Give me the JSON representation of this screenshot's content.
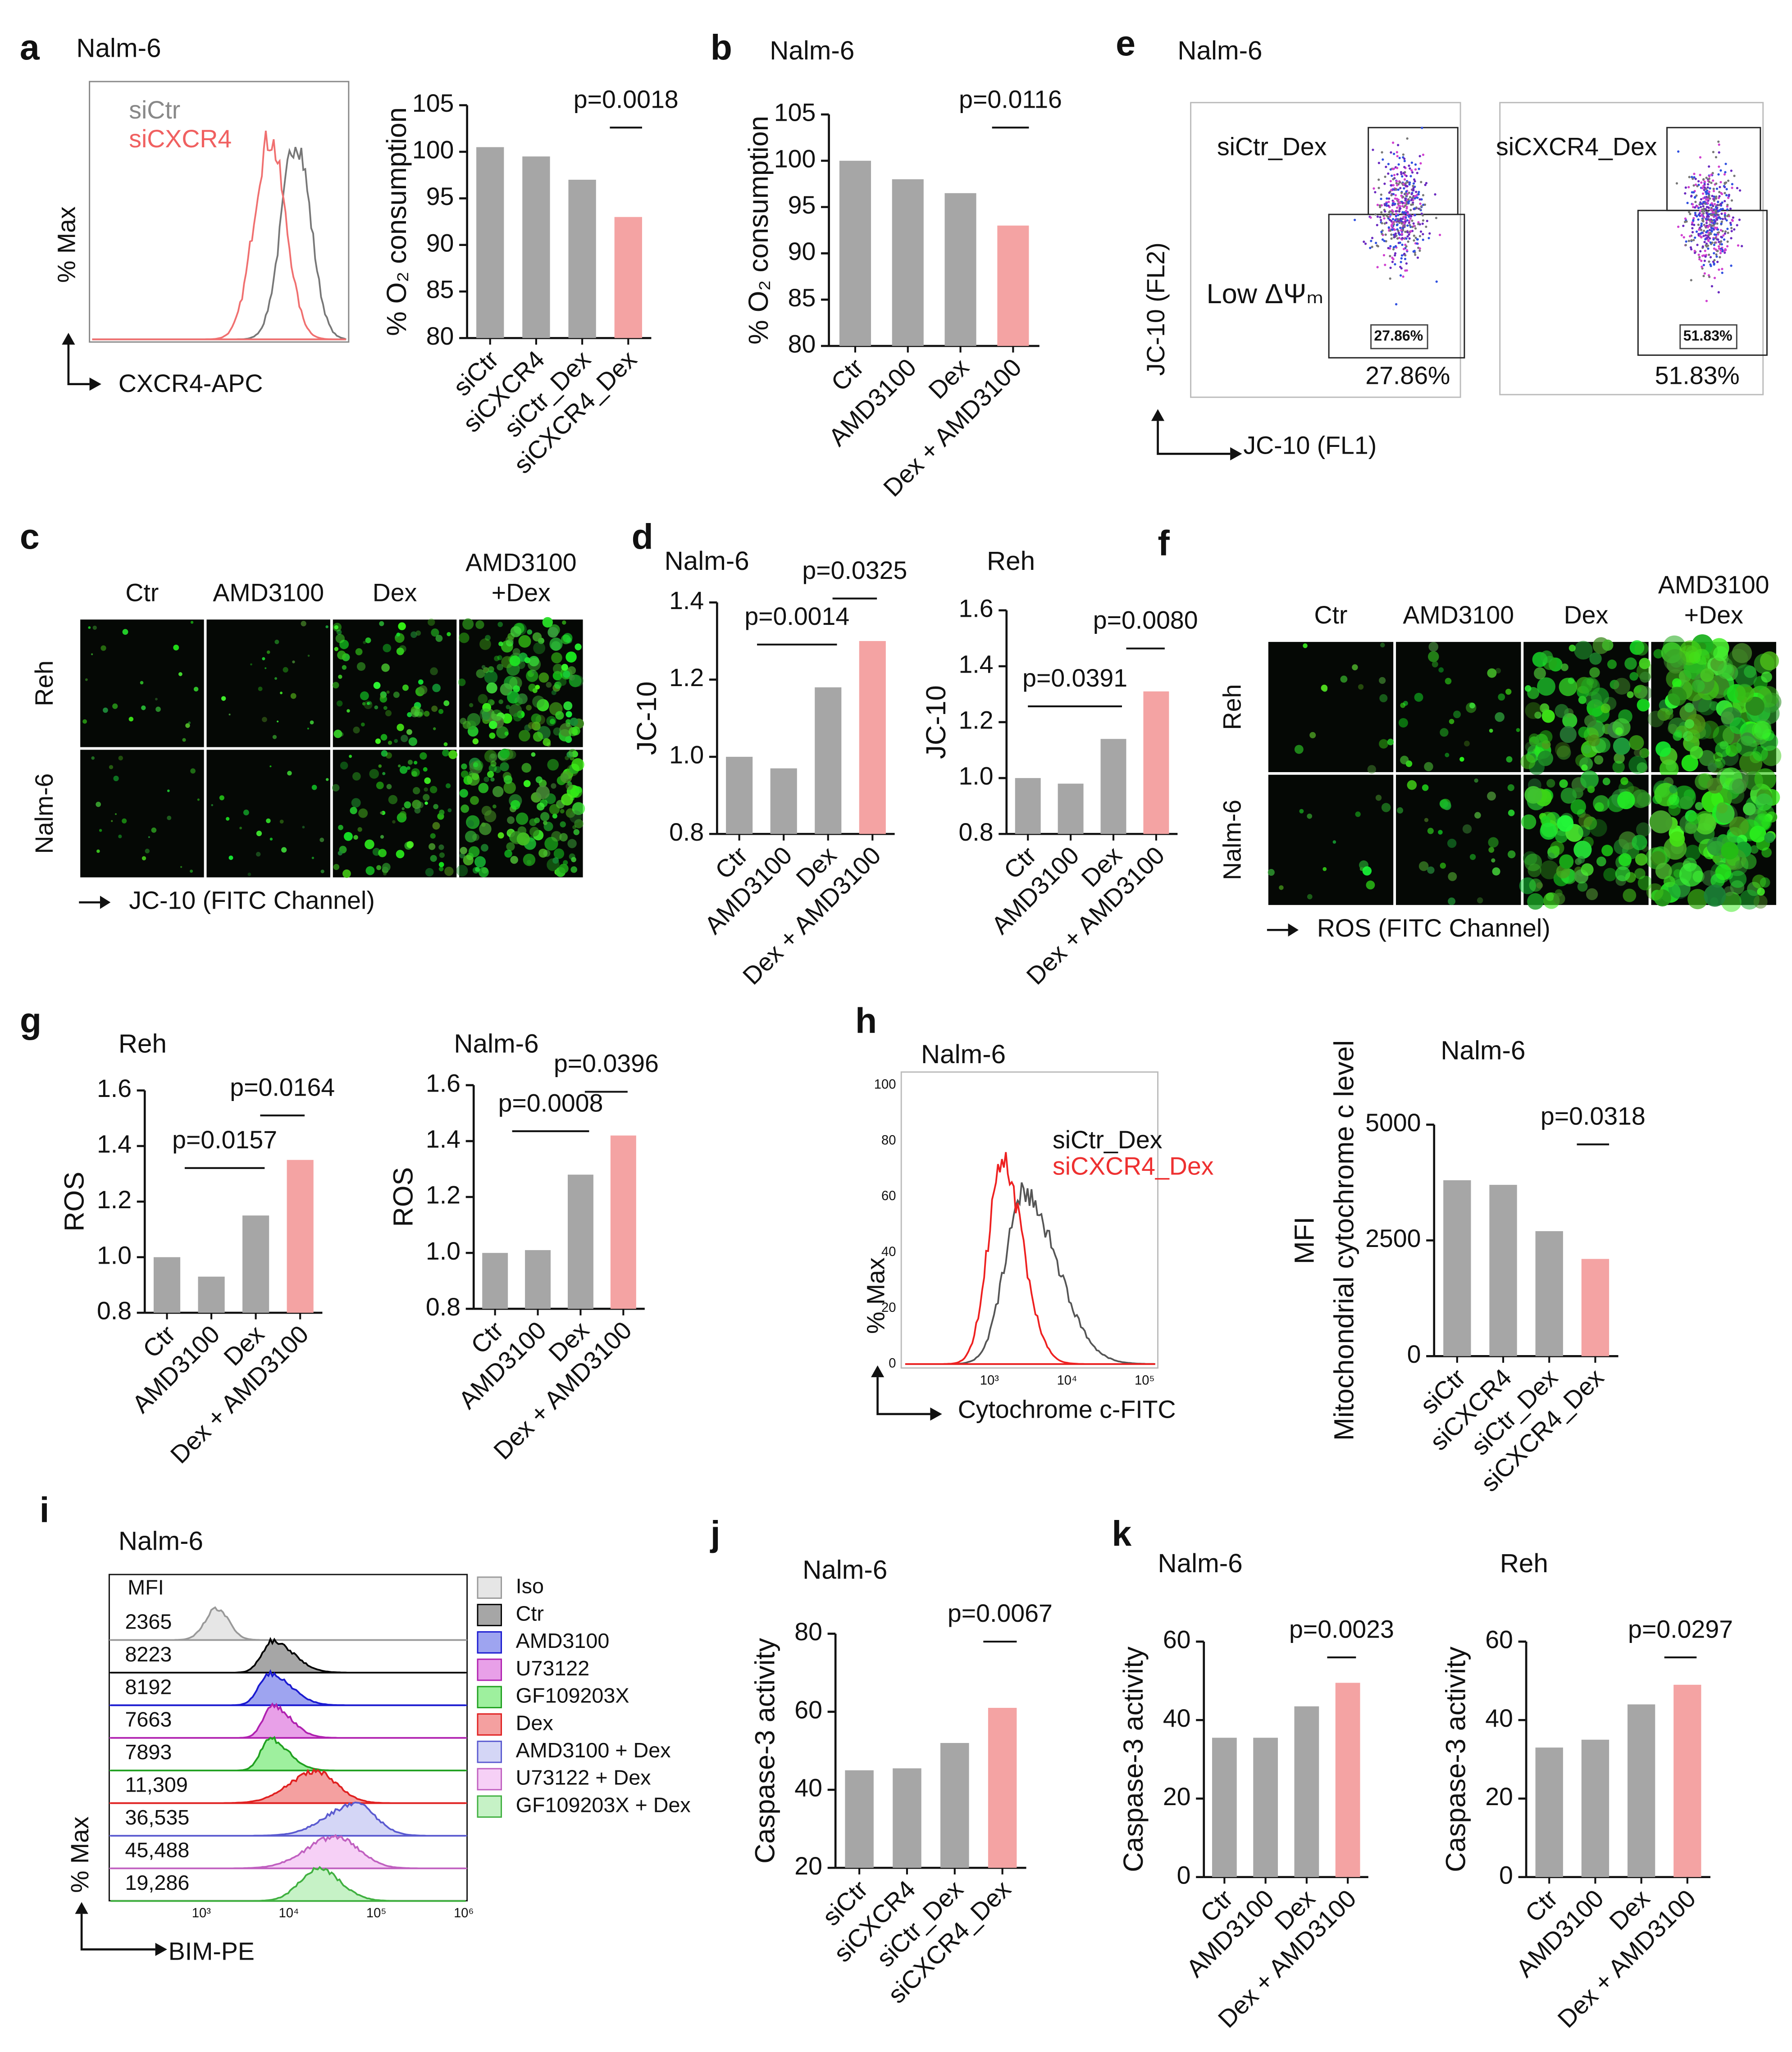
{
  "panel_labels": [
    "a",
    "b",
    "e",
    "c",
    "d",
    "f",
    "g",
    "h",
    "i",
    "j",
    "k"
  ],
  "panel_a": {
    "title": "Nalm-6",
    "legend": [
      "siCtr",
      "siCXCR4"
    ],
    "ylabel": "% Max",
    "xlabel": "CXCR4-APC"
  },
  "panel_c": {
    "columns": [
      [
        "Ctr"
      ],
      [
        "AMD3100"
      ],
      [
        "Dex"
      ],
      [
        "AMD3100",
        "+Dex"
      ]
    ],
    "rows": [
      "Reh",
      "Nalm-6"
    ],
    "xlabel": "JC-10 (FITC Channel)"
  },
  "panel_e": {
    "title": "Nalm-6",
    "plots": [
      {
        "label": "siCtr_Dex",
        "gate": "27.86%",
        "percent": "27.86%"
      },
      {
        "label": "siCXCR4_Dex",
        "gate": "51.83%",
        "percent": "51.83%"
      }
    ],
    "gate_label": "Low ΔΨₘ",
    "ylabel": "JC-10 (FL2)",
    "xlabel": "JC-10 (FL1)"
  },
  "panel_f": {
    "columns": [
      [
        "Ctr"
      ],
      [
        "AMD3100"
      ],
      [
        "Dex"
      ],
      [
        "AMD3100",
        "+Dex"
      ]
    ],
    "rows": [
      "Reh",
      "Nalm-6"
    ],
    "xlabel": "ROS (FITC Channel)"
  },
  "panel_h": {
    "title": "Nalm-6",
    "legend": [
      "siCtr_Dex",
      "siCXCR4_Dex"
    ],
    "ylabel": "% Max",
    "xlabel": "Cytochrome c-FITC",
    "yticks": [
      "0",
      "20",
      "40",
      "60",
      "80",
      "100"
    ],
    "xticks": [
      "10³",
      "10⁴",
      "10⁵"
    ]
  },
  "panel_i": {
    "title": "Nalm-6",
    "header": "MFI",
    "mfi": [
      "2365",
      "8223",
      "8192",
      "7663",
      "7893",
      "11,309",
      "36,535",
      "45,488",
      "19,286"
    ],
    "legend": [
      {
        "name": "Iso",
        "color": "#e6e6e6",
        "stroke": "#999999"
      },
      {
        "name": "Ctr",
        "color": "#a6a6a6",
        "stroke": "#000000"
      },
      {
        "name": "AMD3100",
        "color": "#9ea4f0",
        "stroke": "#1a1ad0"
      },
      {
        "name": "U73122",
        "color": "#e8a0e8",
        "stroke": "#b020b0"
      },
      {
        "name": "GF109203X",
        "color": "#9ef09e",
        "stroke": "#20a020"
      },
      {
        "name": "Dex",
        "color": "#f4a0a0",
        "stroke": "#e02020"
      },
      {
        "name": "AMD3100 + Dex",
        "color": "#d4d6f6",
        "stroke": "#5a5ad0"
      },
      {
        "name": "U73122 + Dex",
        "color": "#f6d0f6",
        "stroke": "#c060c0"
      },
      {
        "name": "GF109203X + Dex",
        "color": "#c6f2c6",
        "stroke": "#40b040"
      }
    ],
    "ylabel": "% Max",
    "xlabel": "BIM-PE",
    "xticks": [
      "10³",
      "10⁴",
      "10⁵",
      "10⁶"
    ]
  },
  "chart_data": [
    {
      "type": "bar",
      "ylabel": [
        "% O₂ consumption"
      ],
      "categories": [
        "siCtr",
        "siCXCR4",
        "siCtr_Dex",
        "siCXCR4_Dex"
      ],
      "values": [
        100.5,
        99.5,
        97,
        93
      ],
      "colors": [
        "#a6a6a6",
        "#a6a6a6",
        "#a6a6a6",
        "#f4a3a3"
      ],
      "ylim": [
        80,
        105
      ],
      "yticks": [
        80,
        85,
        90,
        95,
        100,
        105
      ],
      "annotations": [
        "p=0.0018"
      ]
    },
    {
      "type": "bar",
      "title": "Nalm-6",
      "ylabel": [
        "% O₂ consumption"
      ],
      "categories": [
        "Ctr",
        "AMD3100",
        "Dex",
        "Dex + AMD3100"
      ],
      "values": [
        100,
        98,
        96.5,
        93
      ],
      "colors": [
        "#a6a6a6",
        "#a6a6a6",
        "#a6a6a6",
        "#f4a3a3"
      ],
      "ylim": [
        80,
        105
      ],
      "yticks": [
        80,
        85,
        90,
        95,
        100,
        105
      ],
      "annotations": [
        "p=0.0116"
      ]
    },
    {
      "type": "bar",
      "title": "Nalm-6",
      "ylabel": [
        "JC-10"
      ],
      "categories": [
        "Ctr",
        "AMD3100",
        "Dex",
        "Dex + AMD3100"
      ],
      "values": [
        1.0,
        0.97,
        1.18,
        1.3
      ],
      "colors": [
        "#a6a6a6",
        "#a6a6a6",
        "#a6a6a6",
        "#f4a3a3"
      ],
      "ylim": [
        0.8,
        1.4
      ],
      "yticks": [
        0.8,
        {
          "value": 1,
          "label": "1.0"
        },
        1.2,
        1.4
      ],
      "annotations": [
        "p=0.0014",
        "p=0.0325"
      ]
    },
    {
      "type": "bar",
      "title": "Reh",
      "ylabel": [
        "JC-10"
      ],
      "categories": [
        "Ctr",
        "AMD3100",
        "Dex",
        "Dex + AMD3100"
      ],
      "values": [
        1.0,
        0.98,
        1.14,
        1.31
      ],
      "colors": [
        "#a6a6a6",
        "#a6a6a6",
        "#a6a6a6",
        "#f4a3a3"
      ],
      "ylim": [
        0.8,
        1.6
      ],
      "yticks": [
        0.8,
        {
          "value": 1,
          "label": "1.0"
        },
        1.2,
        1.4,
        1.6
      ],
      "annotations": [
        "p=0.0391",
        "p=0.0080"
      ]
    },
    {
      "type": "bar",
      "title": "Reh",
      "ylabel": [
        "ROS"
      ],
      "categories": [
        "Ctr",
        "AMD3100",
        "Dex",
        "Dex + AMD3100"
      ],
      "values": [
        1.0,
        0.93,
        1.15,
        1.35
      ],
      "colors": [
        "#a6a6a6",
        "#a6a6a6",
        "#a6a6a6",
        "#f4a3a3"
      ],
      "ylim": [
        0.8,
        1.6
      ],
      "yticks": [
        0.8,
        {
          "value": 1,
          "label": "1.0"
        },
        1.2,
        1.4,
        1.6
      ],
      "annotations": [
        "p=0.0157",
        "p=0.0164"
      ]
    },
    {
      "type": "bar",
      "title": "Nalm-6",
      "ylabel": [
        "ROS"
      ],
      "categories": [
        "Ctr",
        "AMD3100",
        "Dex",
        "Dex + AMD3100"
      ],
      "values": [
        1.0,
        1.01,
        1.28,
        1.42
      ],
      "colors": [
        "#a6a6a6",
        "#a6a6a6",
        "#a6a6a6",
        "#f4a3a3"
      ],
      "ylim": [
        0.8,
        1.6
      ],
      "yticks": [
        0.8,
        {
          "value": 1,
          "label": "1.0"
        },
        1.2,
        1.4,
        1.6
      ],
      "annotations": [
        "p=0.0008",
        "p=0.0396"
      ]
    },
    {
      "type": "bar",
      "title": "Nalm-6",
      "ylabel": [
        "MFI",
        "Mitochondrial cytochrome c level"
      ],
      "categories": [
        "siCtr",
        "siCXCR4",
        "siCtr_Dex",
        "siCXCR4_Dex"
      ],
      "values": [
        3800,
        3700,
        2700,
        2100
      ],
      "colors": [
        "#a6a6a6",
        "#a6a6a6",
        "#a6a6a6",
        "#f4a3a3"
      ],
      "ylim": [
        0,
        5000
      ],
      "yticks": [
        0,
        2500,
        5000
      ],
      "annotations": [
        "p=0.0318"
      ]
    },
    {
      "type": "bar",
      "title": "Nalm-6",
      "ylabel": [
        "Caspase-3 activity"
      ],
      "categories": [
        "siCtr",
        "siCXCR4",
        "siCtr_Dex",
        "siCXCR4_Dex"
      ],
      "values": [
        45,
        45.5,
        52,
        61
      ],
      "colors": [
        "#a6a6a6",
        "#a6a6a6",
        "#a6a6a6",
        "#f4a3a3"
      ],
      "ylim": [
        20,
        80
      ],
      "yticks": [
        20,
        40,
        60,
        80
      ],
      "annotations": [
        "p=0.0067"
      ]
    },
    {
      "type": "bar",
      "title": "Nalm-6",
      "ylabel": [
        "Caspase-3 activity"
      ],
      "categories": [
        "Ctr",
        "AMD3100",
        "Dex",
        "Dex + AMD3100"
      ],
      "values": [
        35.5,
        35.5,
        43.5,
        49.5
      ],
      "colors": [
        "#a6a6a6",
        "#a6a6a6",
        "#a6a6a6",
        "#f4a3a3"
      ],
      "ylim": [
        0,
        60
      ],
      "yticks": [
        0,
        20,
        40,
        60
      ],
      "annotations": [
        "p=0.0023"
      ]
    },
    {
      "type": "bar",
      "title": "Reh",
      "ylabel": [
        "Caspase-3 activity"
      ],
      "categories": [
        "Ctr",
        "AMD3100",
        "Dex",
        "Dex + AMD3100"
      ],
      "values": [
        33,
        35,
        44,
        49
      ],
      "colors": [
        "#a6a6a6",
        "#a6a6a6",
        "#a6a6a6",
        "#f4a3a3"
      ],
      "ylim": [
        0,
        60
      ],
      "yticks": [
        0,
        20,
        40,
        60
      ],
      "annotations": [
        "p=0.0297"
      ]
    }
  ]
}
